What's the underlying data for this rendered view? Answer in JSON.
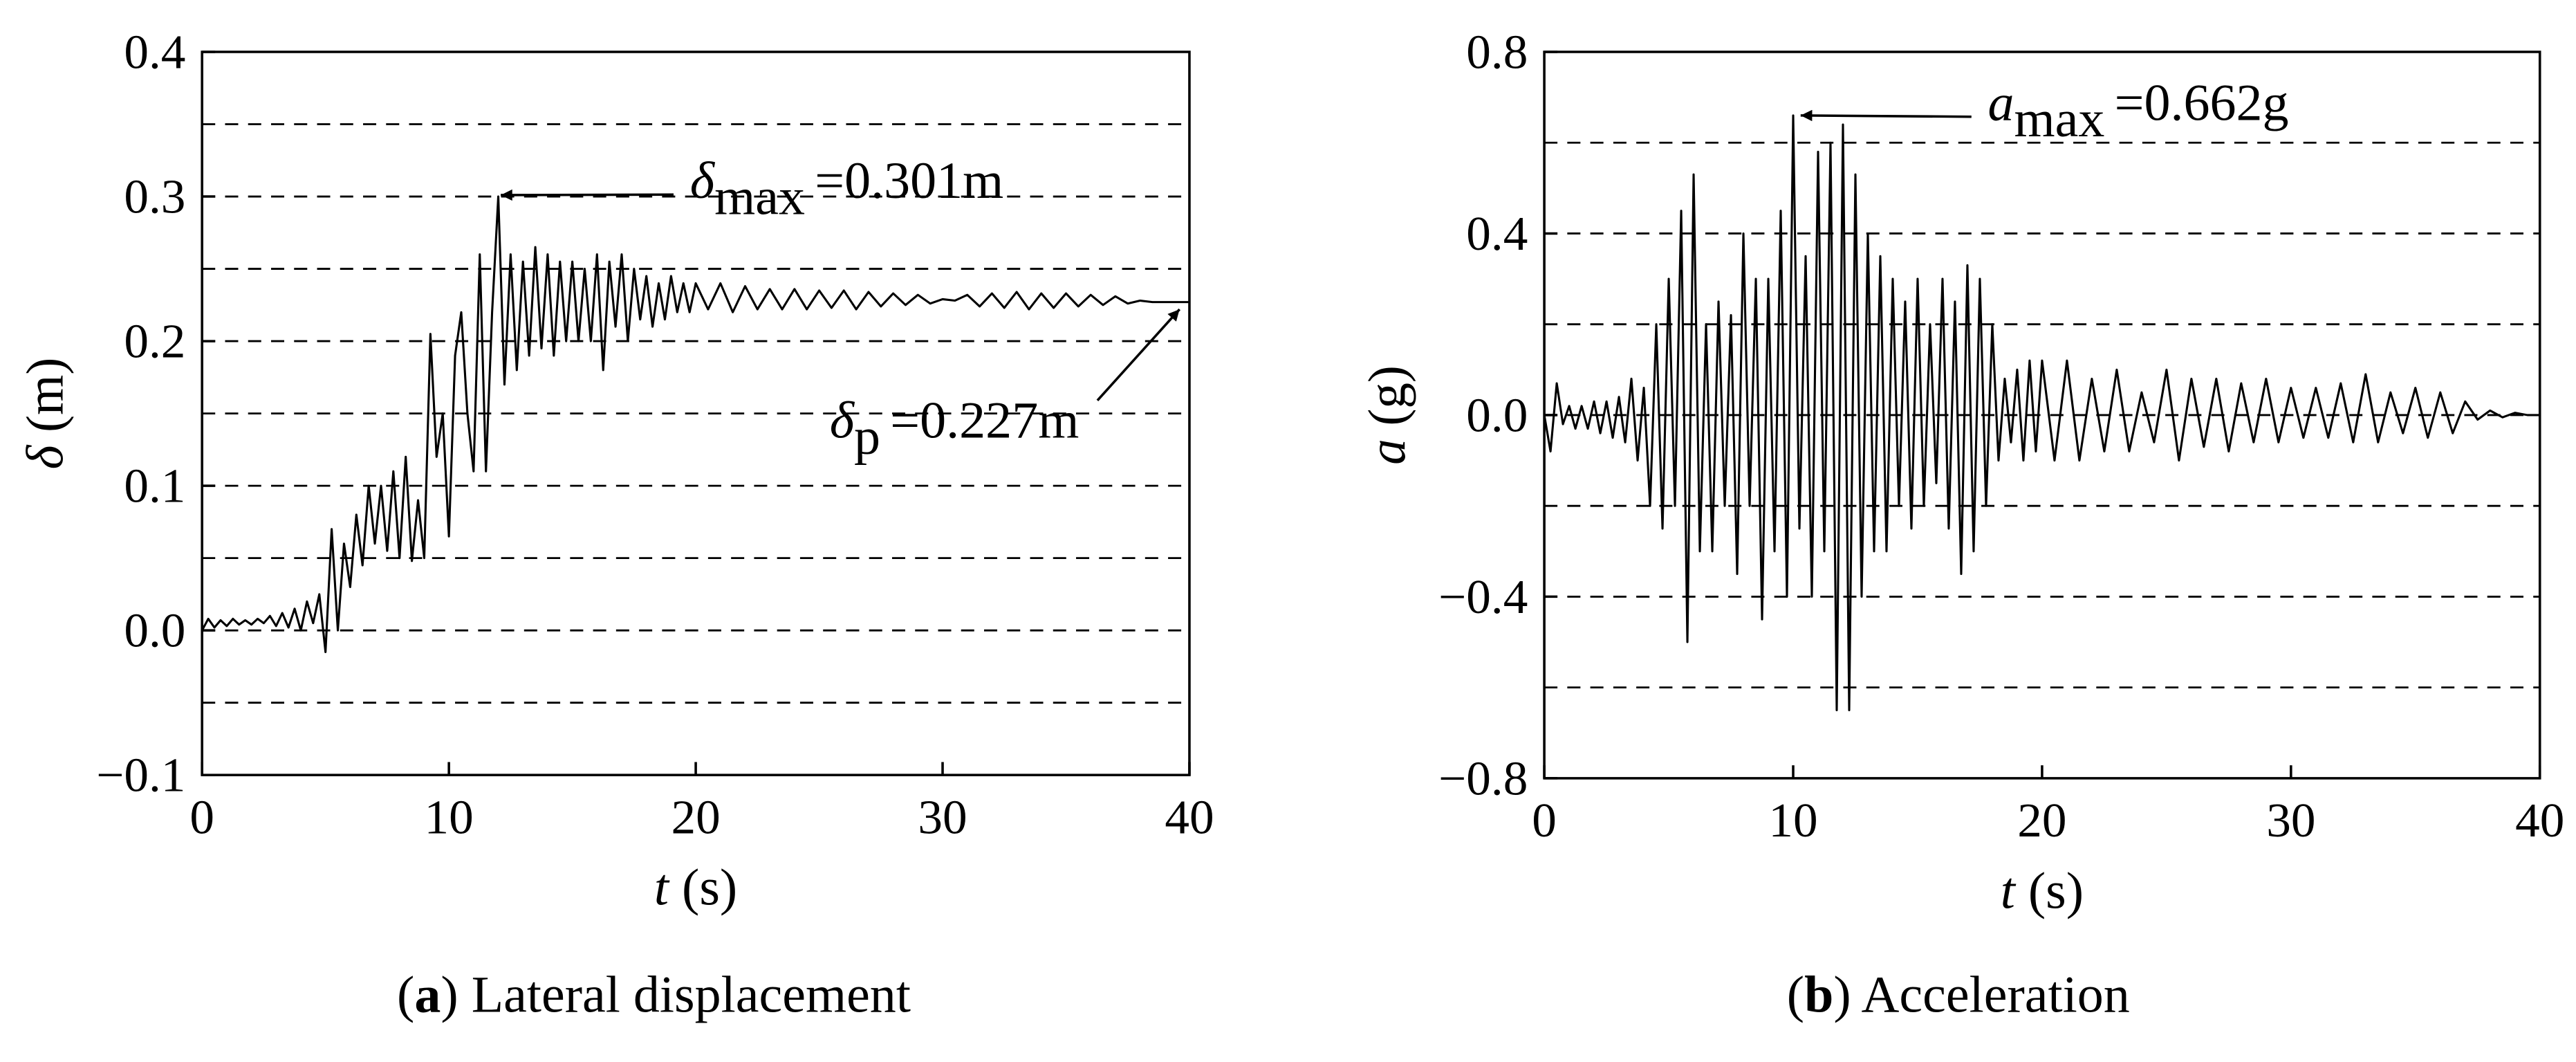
{
  "chart_data": [
    {
      "type": "line",
      "ylabel": {
        "symbol": "δ",
        "unit": "(m)"
      },
      "xlabel": {
        "symbol": "t",
        "unit": "(s)"
      },
      "caption": [
        "(",
        "a",
        ") Lateral displacement"
      ],
      "color": "#000000",
      "x": [
        0,
        0.25,
        0.5,
        0.75,
        1,
        1.25,
        1.5,
        1.75,
        2,
        2.25,
        2.5,
        2.75,
        3,
        3.25,
        3.5,
        3.75,
        4,
        4.25,
        4.5,
        4.75,
        5,
        5.25,
        5.5,
        5.75,
        6,
        6.25,
        6.5,
        6.75,
        7,
        7.25,
        7.5,
        7.75,
        8,
        8.25,
        8.5,
        8.75,
        9,
        9.25,
        9.5,
        9.75,
        10,
        10.25,
        10.5,
        10.75,
        11,
        11.25,
        11.5,
        11.75,
        12,
        12.25,
        12.5,
        12.75,
        13,
        13.25,
        13.5,
        13.75,
        14,
        14.25,
        14.5,
        14.75,
        15,
        15.25,
        15.5,
        15.75,
        16,
        16.25,
        16.5,
        16.75,
        17,
        17.25,
        17.5,
        17.75,
        18,
        18.25,
        18.5,
        18.75,
        19,
        19.25,
        19.5,
        19.75,
        20,
        20.5,
        21,
        21.5,
        22,
        22.5,
        23,
        23.5,
        24,
        24.5,
        25,
        25.5,
        26,
        26.5,
        27,
        27.5,
        28,
        28.5,
        29,
        29.5,
        30,
        30.5,
        31,
        31.5,
        32,
        32.5,
        33,
        33.5,
        34,
        34.5,
        35,
        35.5,
        36,
        36.5,
        37,
        37.5,
        38,
        38.5,
        39,
        39.5,
        40
      ],
      "values": [
        0,
        0.008,
        0.002,
        0.007,
        0.003,
        0.008,
        0.004,
        0.007,
        0.004,
        0.008,
        0.005,
        0.01,
        0.003,
        0.012,
        0.002,
        0.015,
        0,
        0.02,
        0.005,
        0.025,
        -0.015,
        0.07,
        0,
        0.06,
        0.03,
        0.08,
        0.045,
        0.1,
        0.06,
        0.1,
        0.055,
        0.11,
        0.05,
        0.12,
        0.048,
        0.09,
        0.05,
        0.205,
        0.12,
        0.15,
        0.065,
        0.19,
        0.22,
        0.15,
        0.11,
        0.26,
        0.11,
        0.22,
        0.3,
        0.17,
        0.26,
        0.18,
        0.255,
        0.19,
        0.265,
        0.195,
        0.26,
        0.19,
        0.255,
        0.2,
        0.255,
        0.2,
        0.25,
        0.2,
        0.26,
        0.18,
        0.255,
        0.21,
        0.26,
        0.2,
        0.25,
        0.215,
        0.245,
        0.21,
        0.24,
        0.215,
        0.245,
        0.22,
        0.24,
        0.22,
        0.24,
        0.222,
        0.24,
        0.22,
        0.238,
        0.222,
        0.236,
        0.222,
        0.236,
        0.222,
        0.235,
        0.223,
        0.235,
        0.222,
        0.234,
        0.224,
        0.233,
        0.225,
        0.232,
        0.226,
        0.229,
        0.228,
        0.232,
        0.224,
        0.233,
        0.223,
        0.234,
        0.222,
        0.233,
        0.223,
        0.233,
        0.224,
        0.232,
        0.225,
        0.231,
        0.226,
        0.228,
        0.227,
        0.227,
        0.227,
        0.227
      ],
      "xlim": [
        0,
        40
      ],
      "ylim": [
        -0.1,
        0.4
      ],
      "xticks": [
        0,
        10,
        20,
        30,
        40
      ],
      "yticks": [
        {
          "value": -0.1,
          "label": "−0.1"
        },
        {
          "value": 0,
          "label": "0.0"
        },
        0.1,
        0.2,
        0.3,
        0.4
      ],
      "grid_lines": [
        -0.05,
        0,
        0.05,
        0.1,
        0.15,
        0.2,
        0.25,
        0.3,
        0.35
      ],
      "annotations": [
        {
          "symbol": "δ",
          "subscript": "max",
          "text": "=0.301m",
          "point": [
            12.1,
            0.301
          ]
        },
        {
          "symbol": "δ",
          "subscript": "p",
          "text": "=0.227m",
          "point": [
            39.6,
            0.222
          ]
        }
      ]
    },
    {
      "type": "line",
      "ylabel": {
        "symbol": "a",
        "unit": "(g)"
      },
      "xlabel": {
        "symbol": "t",
        "unit": "(s)"
      },
      "caption": [
        "(",
        "b",
        ") Acceleration"
      ],
      "color": "#000000",
      "x": [
        0,
        0.25,
        0.5,
        0.75,
        1,
        1.25,
        1.5,
        1.75,
        2,
        2.25,
        2.5,
        2.75,
        3,
        3.25,
        3.5,
        3.75,
        4,
        4.25,
        4.5,
        4.75,
        5,
        5.25,
        5.5,
        5.75,
        6,
        6.25,
        6.5,
        6.75,
        7,
        7.25,
        7.5,
        7.75,
        8,
        8.25,
        8.5,
        8.75,
        9,
        9.25,
        9.5,
        9.75,
        10,
        10.25,
        10.5,
        10.75,
        11,
        11.25,
        11.5,
        11.75,
        12,
        12.25,
        12.5,
        12.75,
        13,
        13.25,
        13.5,
        13.75,
        14,
        14.25,
        14.5,
        14.75,
        15,
        15.25,
        15.5,
        15.75,
        16,
        16.25,
        16.5,
        16.75,
        17,
        17.25,
        17.5,
        17.75,
        18,
        18.25,
        18.5,
        18.75,
        19,
        19.25,
        19.5,
        19.75,
        20,
        20.5,
        21,
        21.5,
        22,
        22.5,
        23,
        23.5,
        24,
        24.5,
        25,
        25.5,
        26,
        26.5,
        27,
        27.5,
        28,
        28.5,
        29,
        29.5,
        30,
        30.5,
        31,
        31.5,
        32,
        32.5,
        33,
        33.5,
        34,
        34.5,
        35,
        35.5,
        36,
        36.5,
        37,
        37.5,
        38,
        38.5,
        39,
        39.5,
        40
      ],
      "values": [
        0,
        -0.08,
        0.07,
        -0.02,
        0.02,
        -0.03,
        0.02,
        -0.03,
        0.03,
        -0.04,
        0.03,
        -0.05,
        0.04,
        -0.06,
        0.08,
        -0.1,
        0.06,
        -0.2,
        0.2,
        -0.25,
        0.3,
        -0.2,
        0.45,
        -0.5,
        0.53,
        -0.3,
        0.2,
        -0.3,
        0.25,
        -0.2,
        0.22,
        -0.35,
        0.4,
        -0.2,
        0.3,
        -0.45,
        0.3,
        -0.3,
        0.45,
        -0.4,
        0.66,
        -0.25,
        0.35,
        -0.4,
        0.58,
        -0.3,
        0.6,
        -0.65,
        0.64,
        -0.65,
        0.53,
        -0.4,
        0.4,
        -0.3,
        0.35,
        -0.3,
        0.3,
        -0.2,
        0.25,
        -0.25,
        0.3,
        -0.2,
        0.2,
        -0.15,
        0.3,
        -0.25,
        0.25,
        -0.35,
        0.33,
        -0.3,
        0.3,
        -0.2,
        0.2,
        -0.1,
        0.08,
        -0.06,
        0.1,
        -0.1,
        0.12,
        -0.08,
        0.12,
        -0.1,
        0.12,
        -0.1,
        0.08,
        -0.08,
        0.1,
        -0.08,
        0.05,
        -0.06,
        0.1,
        -0.1,
        0.08,
        -0.07,
        0.08,
        -0.08,
        0.07,
        -0.06,
        0.08,
        -0.06,
        0.06,
        -0.05,
        0.06,
        -0.05,
        0.07,
        -0.06,
        0.09,
        -0.06,
        0.05,
        -0.04,
        0.06,
        -0.05,
        0.05,
        -0.04,
        0.03,
        -0.01,
        0.01,
        -0.005,
        0.005,
        0,
        0
      ],
      "xlim": [
        0,
        40
      ],
      "ylim": [
        -0.8,
        0.8
      ],
      "xticks": [
        0,
        10,
        20,
        30,
        40
      ],
      "yticks": [
        {
          "value": -0.8,
          "label": "−0.8"
        },
        {
          "value": -0.4,
          "label": "−0.4"
        },
        {
          "value": 0,
          "label": "0.0"
        },
        0.4,
        0.8
      ],
      "grid_lines": [
        -0.6,
        -0.4,
        -0.2,
        0,
        0.2,
        0.4,
        0.6
      ],
      "annotations": [
        {
          "symbol": "a",
          "subscript": "max",
          "text": "=0.662g",
          "point": [
            10.3,
            0.66
          ]
        }
      ]
    }
  ]
}
